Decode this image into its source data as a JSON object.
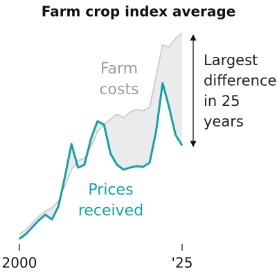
{
  "chart_data": {
    "type": "line",
    "title": "Farm crop index average",
    "x": [
      2000,
      2001,
      2002,
      2003,
      2004,
      2005,
      2006,
      2007,
      2008,
      2009,
      2010,
      2011,
      2012,
      2013,
      2014,
      2015,
      2016,
      2017,
      2018,
      2019,
      2020,
      2021,
      2022,
      2023,
      2024,
      2025
    ],
    "series": [
      {
        "name": [
          "Farm",
          "costs"
        ],
        "color": "#c4c6c8",
        "values": [
          12,
          18,
          28,
          38,
          45,
          50,
          60,
          82,
          105,
          118,
          122,
          138,
          160,
          170,
          178,
          185,
          180,
          188,
          192,
          190,
          195,
          240,
          285,
          282,
          295,
          302
        ]
      },
      {
        "name": [
          "Prices",
          "received"
        ],
        "color": "#1a9ea6",
        "values": [
          5,
          12,
          22,
          32,
          40,
          33,
          52,
          95,
          142,
          108,
          112,
          150,
          175,
          170,
          128,
          112,
          105,
          108,
          110,
          109,
          115,
          160,
          230,
          195,
          155,
          140
        ]
      }
    ],
    "annotation": [
      "Largest",
      "difference",
      "in 25",
      "years"
    ],
    "xlim": [
      2000,
      2025
    ],
    "xticks": [
      2000,
      {
        "value": 2025,
        "label": "'25"
      }
    ],
    "ylim": [
      0,
      300
    ],
    "fill_between": true,
    "fill_color": "#e9ebed"
  }
}
